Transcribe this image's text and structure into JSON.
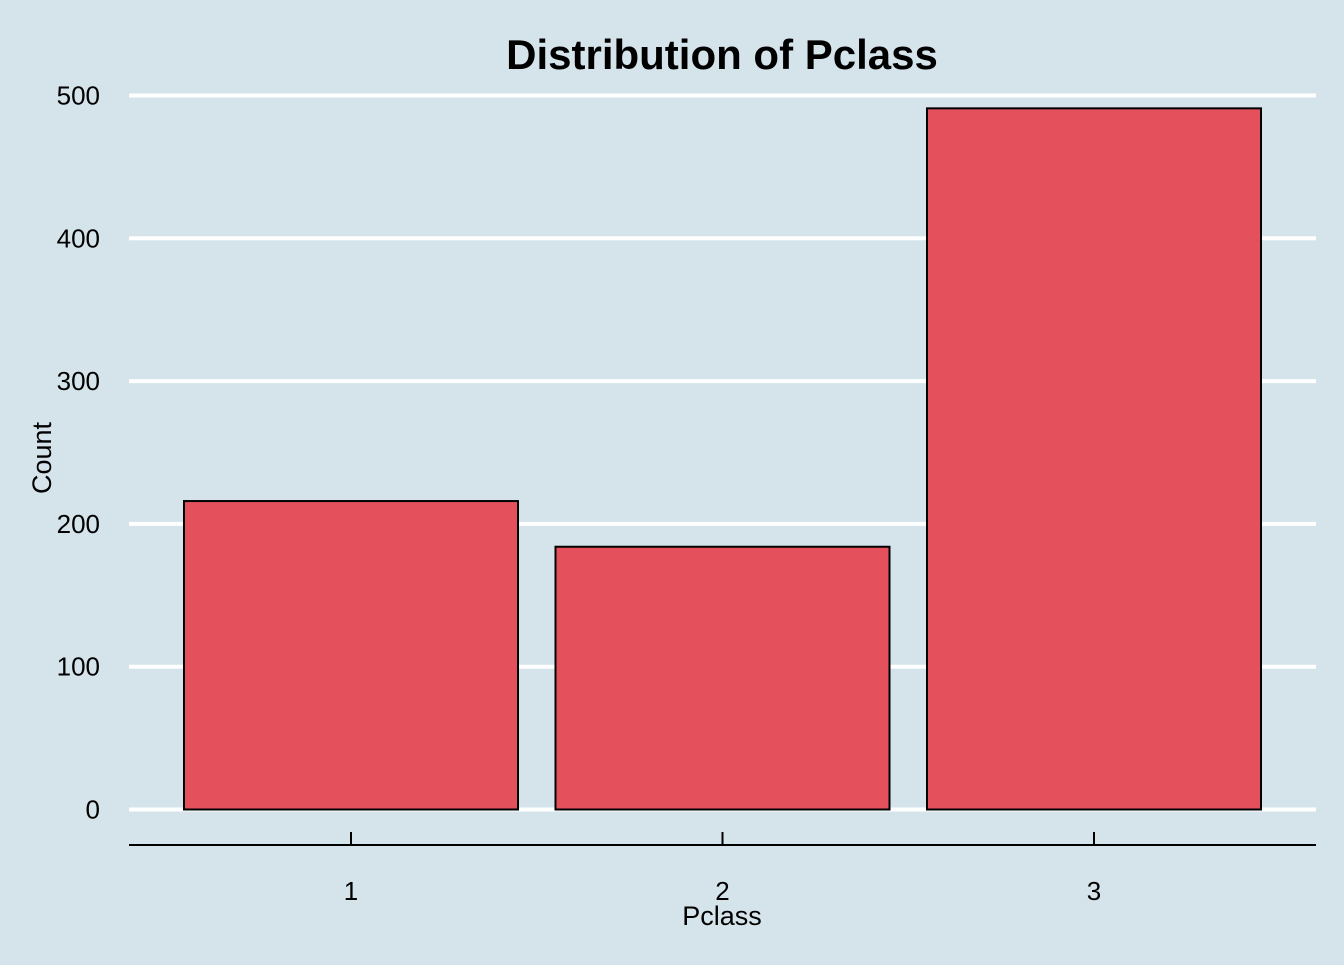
{
  "chart_data": {
    "type": "bar",
    "title": "Distribution of Pclass",
    "xlabel": "Pclass",
    "ylabel": "Count",
    "categories": [
      "1",
      "2",
      "3"
    ],
    "values": [
      216,
      184,
      491
    ],
    "ylim": [
      0,
      500
    ],
    "yticks": [
      "0",
      "100",
      "200",
      "300",
      "400",
      "500"
    ],
    "grid": "horizontal",
    "colors": {
      "background": "#d5e4eb",
      "bar_fill": "#e4505c",
      "bar_stroke": "#000000",
      "grid": "#ffffff"
    }
  }
}
